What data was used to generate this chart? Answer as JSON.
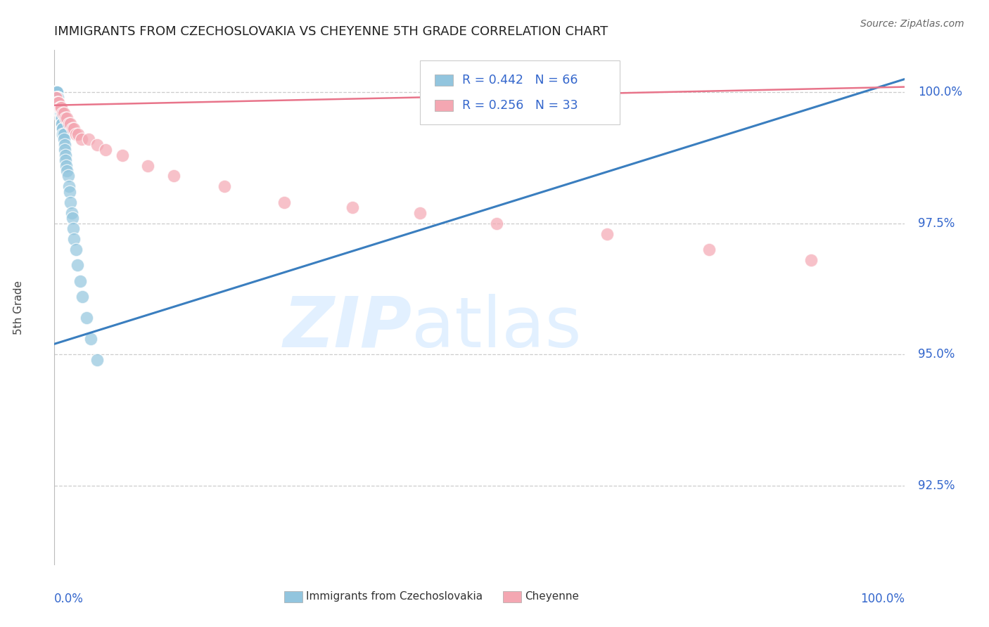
{
  "title": "IMMIGRANTS FROM CZECHOSLOVAKIA VS CHEYENNE 5TH GRADE CORRELATION CHART",
  "source": "Source: ZipAtlas.com",
  "ylabel": "5th Grade",
  "ytick_labels": [
    "100.0%",
    "97.5%",
    "95.0%",
    "92.5%"
  ],
  "ytick_values": [
    1.0,
    0.975,
    0.95,
    0.925
  ],
  "xlim": [
    0.0,
    1.0
  ],
  "ylim": [
    0.91,
    1.008
  ],
  "blue_color": "#92c5de",
  "pink_color": "#f4a7b2",
  "blue_line_color": "#3a7ebf",
  "pink_line_color": "#e8748a",
  "legend_text_color": "#3366cc",
  "background_color": "#ffffff",
  "blue_scatter_x": [
    0.001,
    0.001,
    0.001,
    0.002,
    0.002,
    0.002,
    0.002,
    0.002,
    0.003,
    0.003,
    0.003,
    0.003,
    0.003,
    0.003,
    0.003,
    0.004,
    0.004,
    0.004,
    0.004,
    0.004,
    0.004,
    0.005,
    0.005,
    0.005,
    0.005,
    0.005,
    0.006,
    0.006,
    0.006,
    0.006,
    0.007,
    0.007,
    0.007,
    0.007,
    0.008,
    0.008,
    0.008,
    0.009,
    0.009,
    0.009,
    0.01,
    0.01,
    0.01,
    0.011,
    0.011,
    0.012,
    0.012,
    0.013,
    0.013,
    0.014,
    0.015,
    0.016,
    0.017,
    0.018,
    0.019,
    0.02,
    0.021,
    0.022,
    0.023,
    0.025,
    0.027,
    0.03,
    0.033,
    0.038,
    0.043,
    0.05
  ],
  "blue_scatter_y": [
    1.0,
    1.0,
    1.0,
    1.0,
    1.0,
    1.0,
    1.0,
    1.0,
    1.0,
    1.0,
    1.0,
    1.0,
    1.0,
    0.999,
    0.999,
    0.999,
    0.999,
    0.999,
    0.999,
    0.999,
    0.998,
    0.998,
    0.998,
    0.998,
    0.998,
    0.998,
    0.997,
    0.997,
    0.997,
    0.997,
    0.997,
    0.996,
    0.996,
    0.996,
    0.996,
    0.995,
    0.995,
    0.995,
    0.994,
    0.994,
    0.993,
    0.993,
    0.992,
    0.992,
    0.991,
    0.99,
    0.989,
    0.988,
    0.987,
    0.986,
    0.985,
    0.984,
    0.982,
    0.981,
    0.979,
    0.977,
    0.976,
    0.974,
    0.972,
    0.97,
    0.967,
    0.964,
    0.961,
    0.957,
    0.953,
    0.949
  ],
  "pink_scatter_x": [
    0.001,
    0.002,
    0.003,
    0.004,
    0.005,
    0.006,
    0.007,
    0.008,
    0.01,
    0.011,
    0.013,
    0.015,
    0.017,
    0.019,
    0.021,
    0.023,
    0.025,
    0.028,
    0.032,
    0.04,
    0.05,
    0.06,
    0.08,
    0.11,
    0.14,
    0.2,
    0.27,
    0.35,
    0.43,
    0.52,
    0.65,
    0.77,
    0.89
  ],
  "pink_scatter_y": [
    0.999,
    0.999,
    0.998,
    0.998,
    0.998,
    0.997,
    0.997,
    0.997,
    0.996,
    0.996,
    0.995,
    0.995,
    0.994,
    0.994,
    0.993,
    0.993,
    0.992,
    0.992,
    0.991,
    0.991,
    0.99,
    0.989,
    0.988,
    0.986,
    0.984,
    0.982,
    0.979,
    0.978,
    0.977,
    0.975,
    0.973,
    0.97,
    0.968
  ],
  "blue_line_x": [
    0.0,
    1.0
  ],
  "blue_line_y": [
    0.952,
    1.0025
  ],
  "pink_line_x": [
    0.0,
    1.0
  ],
  "pink_line_y": [
    0.9975,
    1.001
  ]
}
